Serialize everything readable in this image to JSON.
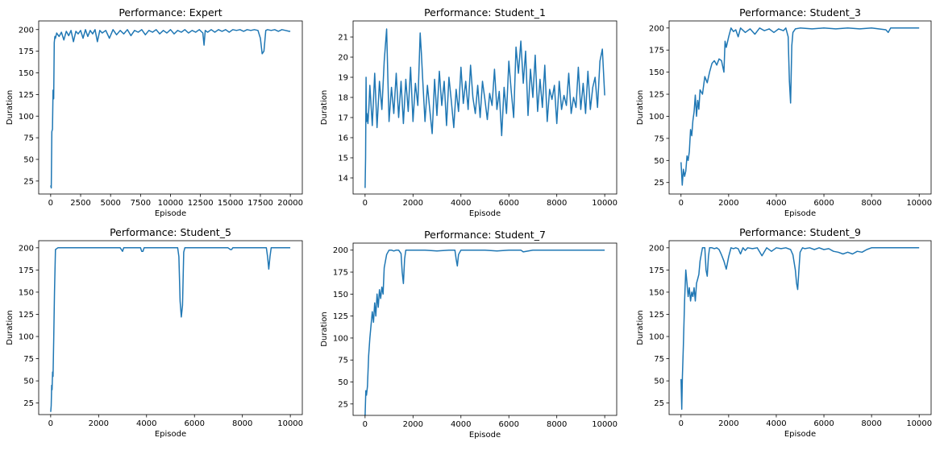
{
  "figure": {
    "line_color": "#1f77b4"
  },
  "chart_data": [
    {
      "type": "line",
      "title": "Performance: Expert",
      "xlabel": "Episode",
      "ylabel": "Duration",
      "xlim": [
        -1000,
        21000
      ],
      "ylim": [
        10,
        210
      ],
      "xticks": [
        0,
        2500,
        5000,
        7500,
        10000,
        12500,
        15000,
        17500,
        20000
      ],
      "yticks": [
        25,
        50,
        75,
        100,
        125,
        150,
        175,
        200
      ],
      "grid": false,
      "series": [
        {
          "x": [
            0,
            50,
            100,
            150,
            200,
            250,
            300,
            350,
            400,
            500,
            700,
            900,
            1100,
            1300,
            1500,
            1700,
            1900,
            2100,
            2300,
            2500,
            2700,
            2900,
            3100,
            3300,
            3500,
            3700,
            3900,
            4100,
            4300,
            4600,
            4900,
            5200,
            5500,
            5800,
            6100,
            6400,
            6700,
            7000,
            7300,
            7600,
            7900,
            8200,
            8500,
            8800,
            9100,
            9400,
            9700,
            10000,
            10300,
            10600,
            10900,
            11200,
            11500,
            11800,
            12100,
            12400,
            12700,
            12800,
            12900,
            13100,
            13400,
            13700,
            14000,
            14300,
            14600,
            14900,
            15200,
            15500,
            15800,
            16100,
            16400,
            16700,
            17000,
            17300,
            17500,
            17650,
            17800,
            17950,
            18100,
            18400,
            18700,
            19000,
            19300,
            19600,
            19900,
            20000
          ],
          "y": [
            20,
            17,
            82,
            85,
            130,
            120,
            185,
            192,
            190,
            196,
            192,
            197,
            188,
            198,
            193,
            199,
            186,
            198,
            195,
            199,
            190,
            200,
            192,
            199,
            195,
            200,
            186,
            199,
            196,
            199,
            190,
            200,
            194,
            199,
            195,
            200,
            193,
            199,
            197,
            200,
            194,
            199,
            197,
            200,
            195,
            199,
            196,
            200,
            195,
            199,
            197,
            200,
            196,
            199,
            197,
            200,
            196,
            182,
            199,
            197,
            200,
            197,
            200,
            198,
            200,
            197,
            200,
            199,
            200,
            198,
            200,
            199,
            200,
            199,
            190,
            172,
            175,
            199,
            200,
            199,
            200,
            198,
            200,
            199,
            198,
            198
          ]
        }
      ]
    },
    {
      "type": "line",
      "title": "Performance: Student_1",
      "xlabel": "Episode",
      "ylabel": "Duration",
      "xlim": [
        -500,
        10500
      ],
      "ylim": [
        13.2,
        21.8
      ],
      "xticks": [
        0,
        2000,
        4000,
        6000,
        8000,
        10000
      ],
      "yticks": [
        14,
        15,
        16,
        17,
        18,
        19,
        20,
        21
      ],
      "grid": false,
      "series": [
        {
          "x": [
            0,
            20,
            40,
            60,
            80,
            120,
            160,
            200,
            300,
            400,
            500,
            600,
            700,
            800,
            900,
            950,
            1000,
            1100,
            1200,
            1300,
            1400,
            1500,
            1600,
            1700,
            1800,
            1900,
            2000,
            2100,
            2200,
            2300,
            2350,
            2400,
            2500,
            2600,
            2700,
            2800,
            2900,
            3000,
            3100,
            3200,
            3300,
            3400,
            3500,
            3600,
            3700,
            3800,
            3900,
            4000,
            4100,
            4200,
            4300,
            4400,
            4500,
            4600,
            4700,
            4800,
            4900,
            5000,
            5100,
            5200,
            5300,
            5400,
            5500,
            5600,
            5700,
            5800,
            5900,
            6000,
            6100,
            6200,
            6300,
            6400,
            6500,
            6600,
            6700,
            6800,
            6900,
            7000,
            7100,
            7200,
            7300,
            7400,
            7500,
            7600,
            7700,
            7800,
            7900,
            8000,
            8100,
            8200,
            8300,
            8400,
            8500,
            8600,
            8700,
            8800,
            8900,
            9000,
            9100,
            9200,
            9300,
            9400,
            9500,
            9600,
            9700,
            9800,
            9900,
            10000
          ],
          "y": [
            13.5,
            15.0,
            19.0,
            16.8,
            17.2,
            16.7,
            17.5,
            18.6,
            16.6,
            19.2,
            16.5,
            18.8,
            17.4,
            19.8,
            21.4,
            19.0,
            16.8,
            18.5,
            17.2,
            19.2,
            17.0,
            18.8,
            16.7,
            18.9,
            17.3,
            19.5,
            16.8,
            18.7,
            17.6,
            21.2,
            20.2,
            19.0,
            16.8,
            18.6,
            17.4,
            16.2,
            18.9,
            17.1,
            19.3,
            17.6,
            18.8,
            16.6,
            19.0,
            17.8,
            16.5,
            18.4,
            17.3,
            19.5,
            17.7,
            18.8,
            17.4,
            19.6,
            18.0,
            17.2,
            18.6,
            17.0,
            18.8,
            17.9,
            16.9,
            18.2,
            17.6,
            19.4,
            17.4,
            18.3,
            16.1,
            18.5,
            17.2,
            19.8,
            18.3,
            17.0,
            20.5,
            19.2,
            20.8,
            18.7,
            20.3,
            17.1,
            19.4,
            18.0,
            20.1,
            17.3,
            18.9,
            17.5,
            19.6,
            16.8,
            18.4,
            17.9,
            18.6,
            16.7,
            18.8,
            17.4,
            18.1,
            17.6,
            19.2,
            17.2,
            18.0,
            17.5,
            19.5,
            17.4,
            18.7,
            17.2,
            19.3,
            17.4,
            18.5,
            19.0,
            17.5,
            19.8,
            20.4,
            18.1
          ]
        }
      ]
    },
    {
      "type": "line",
      "title": "Performance: Student_3",
      "xlabel": "Episode",
      "ylabel": "Duration",
      "xlim": [
        -500,
        10500
      ],
      "ylim": [
        12,
        208
      ],
      "xticks": [
        0,
        2000,
        4000,
        6000,
        8000,
        10000
      ],
      "yticks": [
        25,
        50,
        75,
        100,
        125,
        150,
        175,
        200
      ],
      "grid": false,
      "series": [
        {
          "x": [
            0,
            50,
            100,
            150,
            200,
            250,
            300,
            350,
            400,
            450,
            500,
            550,
            600,
            650,
            700,
            750,
            800,
            900,
            1000,
            1100,
            1200,
            1300,
            1400,
            1500,
            1600,
            1700,
            1800,
            1850,
            1900,
            2000,
            2100,
            2200,
            2300,
            2400,
            2500,
            2700,
            2900,
            3100,
            3300,
            3500,
            3700,
            3900,
            4100,
            4300,
            4400,
            4500,
            4550,
            4600,
            4650,
            4700,
            4800,
            5000,
            5500,
            6000,
            6500,
            7000,
            7500,
            8000,
            8300,
            8600,
            8700,
            8800,
            9000,
            9300,
            9600,
            10000
          ],
          "y": [
            48,
            22,
            40,
            32,
            38,
            55,
            50,
            60,
            85,
            78,
            95,
            105,
            124,
            100,
            118,
            108,
            130,
            125,
            145,
            138,
            150,
            160,
            163,
            158,
            165,
            163,
            150,
            185,
            178,
            190,
            200,
            196,
            198,
            190,
            200,
            195,
            199,
            193,
            200,
            197,
            199,
            195,
            199,
            197,
            200,
            190,
            140,
            115,
            180,
            195,
            199,
            200,
            199,
            200,
            199,
            200,
            199,
            200,
            199,
            198,
            195,
            200,
            200,
            200,
            200,
            200
          ]
        }
      ]
    },
    {
      "type": "line",
      "title": "Performance: Student_5",
      "xlabel": "Episode",
      "ylabel": "Duration",
      "xlim": [
        -500,
        10500
      ],
      "ylim": [
        12,
        208
      ],
      "xticks": [
        0,
        2000,
        4000,
        6000,
        8000,
        10000
      ],
      "yticks": [
        25,
        50,
        75,
        100,
        125,
        150,
        175,
        200
      ],
      "grid": false,
      "series": [
        {
          "x": [
            0,
            20,
            40,
            60,
            80,
            100,
            130,
            160,
            200,
            300,
            600,
            1000,
            1500,
            2000,
            2500,
            2900,
            3000,
            3050,
            3100,
            3500,
            3750,
            3800,
            3850,
            3900,
            4500,
            5000,
            5300,
            5350,
            5400,
            5450,
            5500,
            5550,
            5600,
            5700,
            6000,
            6500,
            7000,
            7400,
            7500,
            7550,
            7600,
            8000,
            8500,
            9000,
            9050,
            9100,
            9150,
            9200,
            9300,
            9500,
            10000
          ],
          "y": [
            15,
            22,
            45,
            40,
            60,
            55,
            100,
            150,
            198,
            200,
            200,
            200,
            200,
            200,
            200,
            200,
            196,
            200,
            200,
            200,
            200,
            196,
            196,
            200,
            200,
            200,
            200,
            190,
            140,
            122,
            135,
            195,
            200,
            200,
            200,
            200,
            200,
            200,
            198,
            198,
            200,
            200,
            200,
            200,
            190,
            176,
            190,
            200,
            200,
            200,
            200
          ]
        }
      ]
    },
    {
      "type": "line",
      "title": "Performance: Student_7",
      "xlabel": "Episode",
      "ylabel": "Duration",
      "xlim": [
        -500,
        10500
      ],
      "ylim": [
        12,
        208
      ],
      "xticks": [
        0,
        2000,
        4000,
        6000,
        8000,
        10000
      ],
      "yticks": [
        25,
        50,
        75,
        100,
        125,
        150,
        175,
        200
      ],
      "grid": false,
      "series": [
        {
          "x": [
            0,
            30,
            60,
            100,
            150,
            200,
            250,
            300,
            350,
            400,
            450,
            500,
            550,
            600,
            650,
            700,
            750,
            800,
            900,
            1000,
            1100,
            1200,
            1300,
            1400,
            1500,
            1550,
            1600,
            1650,
            1700,
            1800,
            2000,
            2500,
            3000,
            3500,
            3750,
            3800,
            3850,
            3900,
            4000,
            4500,
            5000,
            5500,
            6000,
            6500,
            6600,
            7000,
            8000,
            9000,
            10000
          ],
          "y": [
            12,
            40,
            35,
            45,
            80,
            100,
            115,
            130,
            118,
            140,
            125,
            150,
            135,
            155,
            145,
            158,
            150,
            180,
            195,
            200,
            200,
            199,
            200,
            200,
            196,
            175,
            162,
            190,
            200,
            200,
            200,
            200,
            199,
            200,
            200,
            190,
            182,
            195,
            200,
            200,
            200,
            199,
            200,
            200,
            198,
            200,
            200,
            200,
            200
          ]
        }
      ]
    },
    {
      "type": "line",
      "title": "Performance: Student_9",
      "xlabel": "Episode",
      "ylabel": "Duration",
      "xlim": [
        -500,
        10500
      ],
      "ylim": [
        12,
        208
      ],
      "xticks": [
        0,
        2000,
        4000,
        6000,
        8000,
        10000
      ],
      "yticks": [
        25,
        50,
        75,
        100,
        125,
        150,
        175,
        200
      ],
      "grid": false,
      "series": [
        {
          "x": [
            0,
            30,
            60,
            100,
            150,
            200,
            250,
            300,
            350,
            400,
            450,
            500,
            550,
            600,
            650,
            700,
            750,
            800,
            900,
            1000,
            1050,
            1100,
            1150,
            1200,
            1300,
            1400,
            1500,
            1600,
            1700,
            1800,
            1900,
            2000,
            2100,
            2200,
            2300,
            2400,
            2500,
            2600,
            2700,
            2800,
            3000,
            3200,
            3400,
            3600,
            3800,
            4000,
            4200,
            4400,
            4600,
            4700,
            4800,
            4850,
            4900,
            4950,
            5000,
            5100,
            5200,
            5400,
            5600,
            5800,
            6000,
            6200,
            6400,
            6600,
            6800,
            7000,
            7200,
            7400,
            7600,
            7800,
            8000,
            8300,
            8600,
            9000,
            9500,
            10000
          ],
          "y": [
            52,
            18,
            55,
            90,
            140,
            175,
            160,
            145,
            155,
            140,
            150,
            145,
            155,
            140,
            160,
            165,
            170,
            185,
            200,
            200,
            175,
            168,
            190,
            200,
            200,
            199,
            200,
            198,
            192,
            185,
            176,
            190,
            200,
            199,
            200,
            199,
            193,
            200,
            197,
            200,
            199,
            200,
            191,
            200,
            196,
            200,
            199,
            200,
            198,
            192,
            175,
            160,
            153,
            175,
            195,
            200,
            199,
            200,
            198,
            200,
            198,
            199,
            196,
            195,
            193,
            195,
            193,
            196,
            195,
            198,
            200,
            200,
            200,
            200,
            200,
            200
          ]
        }
      ]
    }
  ]
}
